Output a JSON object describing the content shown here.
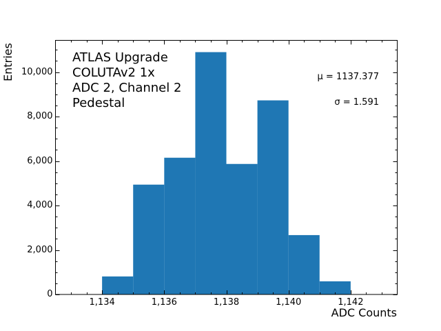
{
  "chart_data": {
    "type": "bar",
    "title": "",
    "xlabel": "ADC Counts",
    "ylabel": "Entries",
    "bin_edges": [
      1134,
      1135,
      1136,
      1137,
      1138,
      1139,
      1140,
      1141,
      1142
    ],
    "categories": [
      "1134",
      "1135",
      "1136",
      "1137",
      "1138",
      "1139",
      "1140",
      "1141"
    ],
    "values": [
      810,
      4940,
      6150,
      10900,
      5870,
      8730,
      2670,
      590
    ],
    "xlim": [
      1132.5,
      1143.5
    ],
    "ylim": [
      0,
      11430
    ],
    "xticks": [
      1134,
      1136,
      1138,
      1140,
      1142
    ],
    "xtick_labels": [
      "1,134",
      "1,136",
      "1,138",
      "1,140",
      "1,142"
    ],
    "yticks": [
      0,
      2000,
      4000,
      6000,
      8000,
      10000
    ],
    "ytick_labels": [
      "0",
      "2,000",
      "4,000",
      "6,000",
      "8,000",
      "10,000"
    ],
    "grid": false,
    "bar_color": "#1f77b4",
    "annotations": {
      "lines": [
        "ATLAS Upgrade",
        "COLUTAv2 1x",
        "ADC 2, Channel 2",
        "Pedestal"
      ],
      "mean": "μ = 1137.377",
      "sigma": "σ = 1.591"
    }
  }
}
